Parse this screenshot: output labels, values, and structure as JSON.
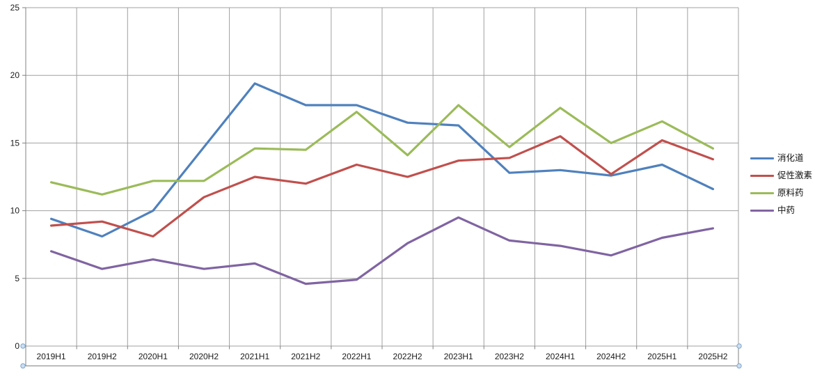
{
  "chart_data": {
    "type": "line",
    "categories": [
      "2019H1",
      "2019H2",
      "2020H1",
      "2020H2",
      "2021H1",
      "2021H2",
      "2022H1",
      "2022H2",
      "2023H1",
      "2023H2",
      "2024H1",
      "2024H2",
      "2025H1",
      "2025H2"
    ],
    "series": [
      {
        "name": "消化道",
        "color": "#4F81BD",
        "values": [
          9.4,
          8.1,
          10.0,
          14.7,
          19.4,
          17.8,
          17.8,
          16.5,
          16.3,
          12.8,
          13.0,
          12.6,
          13.4,
          11.6
        ]
      },
      {
        "name": "促性激素",
        "color": "#C0504D",
        "values": [
          8.9,
          9.2,
          8.1,
          11.0,
          12.5,
          12.0,
          13.4,
          12.5,
          13.7,
          13.9,
          15.5,
          12.7,
          15.2,
          13.8
        ]
      },
      {
        "name": "原料药",
        "color": "#9BBB59",
        "values": [
          12.1,
          11.2,
          12.2,
          12.2,
          14.6,
          14.5,
          17.3,
          14.1,
          17.8,
          14.7,
          17.6,
          15.0,
          16.6,
          14.6
        ]
      },
      {
        "name": "中药",
        "color": "#8064A2",
        "values": [
          7.0,
          5.7,
          6.4,
          5.7,
          6.1,
          4.6,
          4.9,
          7.6,
          9.5,
          7.8,
          7.4,
          6.7,
          8.0,
          8.7
        ]
      }
    ],
    "title": "",
    "xlabel": "",
    "ylabel": "",
    "ylim": [
      0,
      25
    ],
    "y_tick_step": 5,
    "y_tick_labels": [
      "0",
      "5",
      "10",
      "15",
      "20",
      "25"
    ],
    "grid": "both",
    "legend_position": "right",
    "gridline_color": "#A0A0A0",
    "axis_line_color": "#808080",
    "tick_label_color": "#1a1a1a",
    "selection_handle_fill": "#CDDDF0",
    "selection_handle_stroke": "#7DA7CD"
  }
}
